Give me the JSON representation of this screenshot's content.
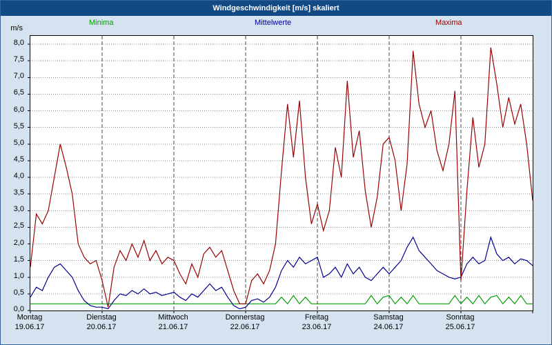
{
  "window": {
    "title": "Windgeschwindigkeit [m/s] skaliert"
  },
  "axis": {
    "y_unit": "m/s",
    "y_tick_labels": [
      "8,0",
      "7,5",
      "7,0",
      "6,5",
      "6,0",
      "5,5",
      "5,0",
      "4,5",
      "4,0",
      "3,5",
      "3,0",
      "2,5",
      "2,0",
      "1,5",
      "1,0",
      "0,5",
      "0,0"
    ],
    "days": [
      {
        "name": "Montag",
        "date": "19.06.17"
      },
      {
        "name": "Dienstag",
        "date": "20.06.17"
      },
      {
        "name": "Mittwoch",
        "date": "21.06.17"
      },
      {
        "name": "Donnerstag",
        "date": "22.06.17"
      },
      {
        "name": "Freitag",
        "date": "23.06.17"
      },
      {
        "name": "Samstag",
        "date": "24.06.17"
      },
      {
        "name": "Sonntag",
        "date": "25.06.17"
      }
    ]
  },
  "chart_data": {
    "type": "line",
    "title": "Windgeschwindigkeit [m/s] skaliert",
    "ylabel": "m/s",
    "ylim": [
      0,
      8
    ],
    "y_tick_step": 0.5,
    "x_start_hours": 0,
    "x_step_hours": 2,
    "x_end_hours": 168,
    "x_range": [
      "19.06.17",
      "25.06.17"
    ],
    "grid": {
      "horizontal": "dotted",
      "vertical": "dashed-daily"
    },
    "legend_position": "top",
    "series": [
      {
        "name": "Minima",
        "color": "#00a000",
        "values": [
          0.2,
          0.2,
          0.2,
          0.2,
          0.2,
          0.2,
          0.2,
          0.2,
          0.2,
          0.2,
          0.2,
          0.2,
          0.2,
          0.2,
          0.2,
          0.2,
          0.2,
          0.2,
          0.2,
          0.2,
          0.2,
          0.2,
          0.2,
          0.2,
          0.2,
          0.2,
          0.2,
          0.2,
          0.2,
          0.2,
          0.2,
          0.2,
          0.2,
          0.2,
          0.2,
          0.2,
          0.2,
          0.2,
          0.2,
          0.2,
          0.2,
          0.2,
          0.4,
          0.2,
          0.45,
          0.2,
          0.4,
          0.2,
          0.2,
          0.2,
          0.2,
          0.2,
          0.2,
          0.2,
          0.2,
          0.2,
          0.2,
          0.45,
          0.2,
          0.4,
          0.45,
          0.2,
          0.4,
          0.2,
          0.45,
          0.2,
          0.2,
          0.2,
          0.2,
          0.2,
          0.2,
          0.45,
          0.2,
          0.4,
          0.2,
          0.45,
          0.2,
          0.4,
          0.45,
          0.2,
          0.4,
          0.2,
          0.45,
          0.2,
          0.2
        ]
      },
      {
        "name": "Mittelwerte",
        "color": "#000090",
        "values": [
          0.4,
          0.7,
          0.6,
          1.0,
          1.3,
          1.4,
          1.2,
          1.0,
          0.6,
          0.3,
          0.15,
          0.1,
          0.1,
          0.05,
          0.3,
          0.5,
          0.45,
          0.6,
          0.5,
          0.65,
          0.5,
          0.55,
          0.45,
          0.5,
          0.55,
          0.4,
          0.3,
          0.5,
          0.4,
          0.6,
          0.8,
          0.6,
          0.7,
          0.4,
          0.15,
          0.05,
          0.1,
          0.3,
          0.35,
          0.25,
          0.4,
          0.7,
          1.2,
          1.5,
          1.3,
          1.6,
          1.4,
          1.5,
          1.6,
          1.0,
          1.1,
          1.3,
          1.0,
          1.4,
          1.1,
          1.3,
          1.0,
          0.9,
          1.1,
          1.3,
          1.1,
          1.3,
          1.5,
          1.9,
          2.2,
          1.8,
          1.6,
          1.4,
          1.2,
          1.1,
          1.0,
          0.95,
          1.0,
          1.4,
          1.6,
          1.4,
          1.5,
          2.2,
          1.7,
          1.5,
          1.6,
          1.4,
          1.55,
          1.5,
          1.35
        ]
      },
      {
        "name": "Maxima",
        "color": "#990000",
        "values": [
          1.3,
          2.9,
          2.6,
          3.0,
          4.0,
          5.0,
          4.3,
          3.5,
          2.0,
          1.6,
          1.4,
          1.5,
          0.9,
          0.1,
          1.3,
          1.8,
          1.5,
          2.0,
          1.6,
          2.1,
          1.5,
          1.8,
          1.4,
          1.6,
          1.5,
          1.1,
          0.8,
          1.4,
          1.0,
          1.7,
          1.9,
          1.6,
          1.8,
          1.2,
          0.6,
          0.2,
          0.2,
          0.9,
          1.1,
          0.8,
          1.2,
          2.0,
          4.2,
          6.2,
          4.6,
          6.3,
          4.0,
          2.6,
          3.2,
          2.4,
          3.0,
          4.9,
          4.0,
          6.9,
          4.6,
          5.4,
          3.6,
          2.5,
          3.4,
          5.0,
          5.2,
          4.5,
          3.0,
          4.4,
          7.8,
          6.2,
          5.5,
          6.0,
          4.8,
          4.2,
          5.0,
          6.6,
          0.9,
          3.6,
          5.8,
          4.3,
          5.0,
          7.9,
          6.8,
          5.5,
          6.4,
          5.6,
          6.2,
          5.0,
          3.3
        ]
      }
    ]
  }
}
